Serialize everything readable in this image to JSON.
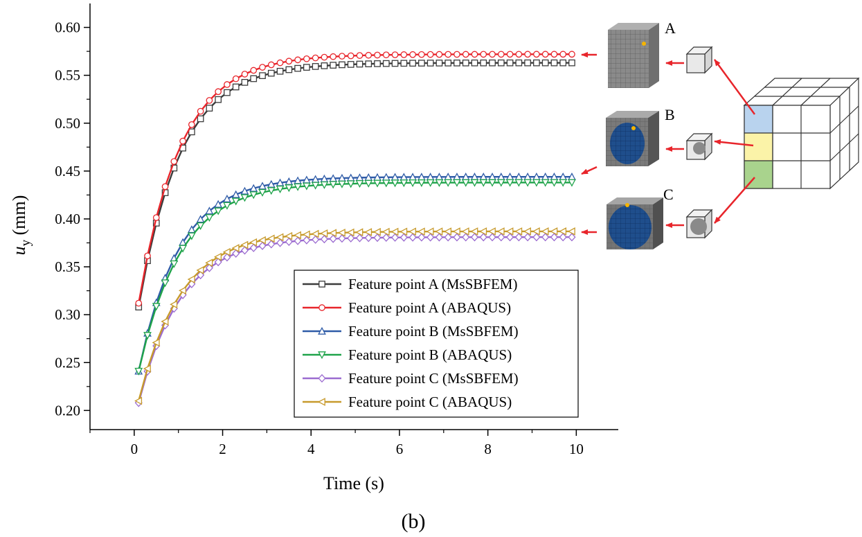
{
  "chart_data": {
    "type": "line",
    "xlabel": "Time (s)",
    "ylabel_symbol": "u",
    "ylabel_subscript": "y",
    "ylabel_unit": "(mm)",
    "xlim": [
      -1,
      10.95
    ],
    "ylim": [
      0.18,
      0.625
    ],
    "xticks": [
      0,
      2,
      4,
      6,
      8,
      10
    ],
    "xtick_labels": [
      "0",
      "2",
      "4",
      "6",
      "8",
      "10"
    ],
    "yticks": [
      0.2,
      0.25,
      0.3,
      0.35,
      0.4,
      0.45,
      0.5,
      0.55,
      0.6
    ],
    "ytick_labels": [
      "0.20",
      "0.25",
      "0.30",
      "0.35",
      "0.40",
      "0.45",
      "0.50",
      "0.55",
      "0.60"
    ],
    "legend_position": "bottom-right",
    "panel_label": "(b)",
    "series": [
      {
        "name": "Feature point A (MsSBFEM)",
        "color": "#3b3b3b",
        "marker": "square",
        "start": 0.308,
        "end": 0.563,
        "tau": 0.95
      },
      {
        "name": "Feature point A (ABAQUS)",
        "color": "#e8252b",
        "marker": "circle",
        "start": 0.312,
        "end": 0.572,
        "tau": 0.95
      },
      {
        "name": "Feature point B (MsSBFEM)",
        "color": "#2e5ba7",
        "marker": "triangle-up",
        "start": 0.241,
        "end": 0.444,
        "tau": 0.92
      },
      {
        "name": "Feature point B (ABAQUS)",
        "color": "#1fa34a",
        "marker": "triangle-down",
        "start": 0.241,
        "end": 0.438,
        "tau": 0.95
      },
      {
        "name": "Feature point C (MsSBFEM)",
        "color": "#9b6bd0",
        "marker": "diamond",
        "start": 0.208,
        "end": 0.381,
        "tau": 0.95
      },
      {
        "name": "Feature point C (ABAQUS)",
        "color": "#c79a2c",
        "marker": "triangle-left",
        "start": 0.21,
        "end": 0.387,
        "tau": 0.95
      }
    ],
    "x_start": 0.1,
    "x_end": 10.0,
    "x_step": 0.2
  },
  "inset": {
    "labels": [
      "A",
      "B",
      "C"
    ],
    "colors": {
      "mesh_gray": "#8a8a8a",
      "inclusion_blue": "#1f4e8c",
      "feature_point": "#f5b400",
      "arrow": "#e8252b",
      "cell_blue": "#b9d3ee",
      "cell_yellow": "#fbf3a8",
      "cell_green": "#a9d38d"
    }
  }
}
